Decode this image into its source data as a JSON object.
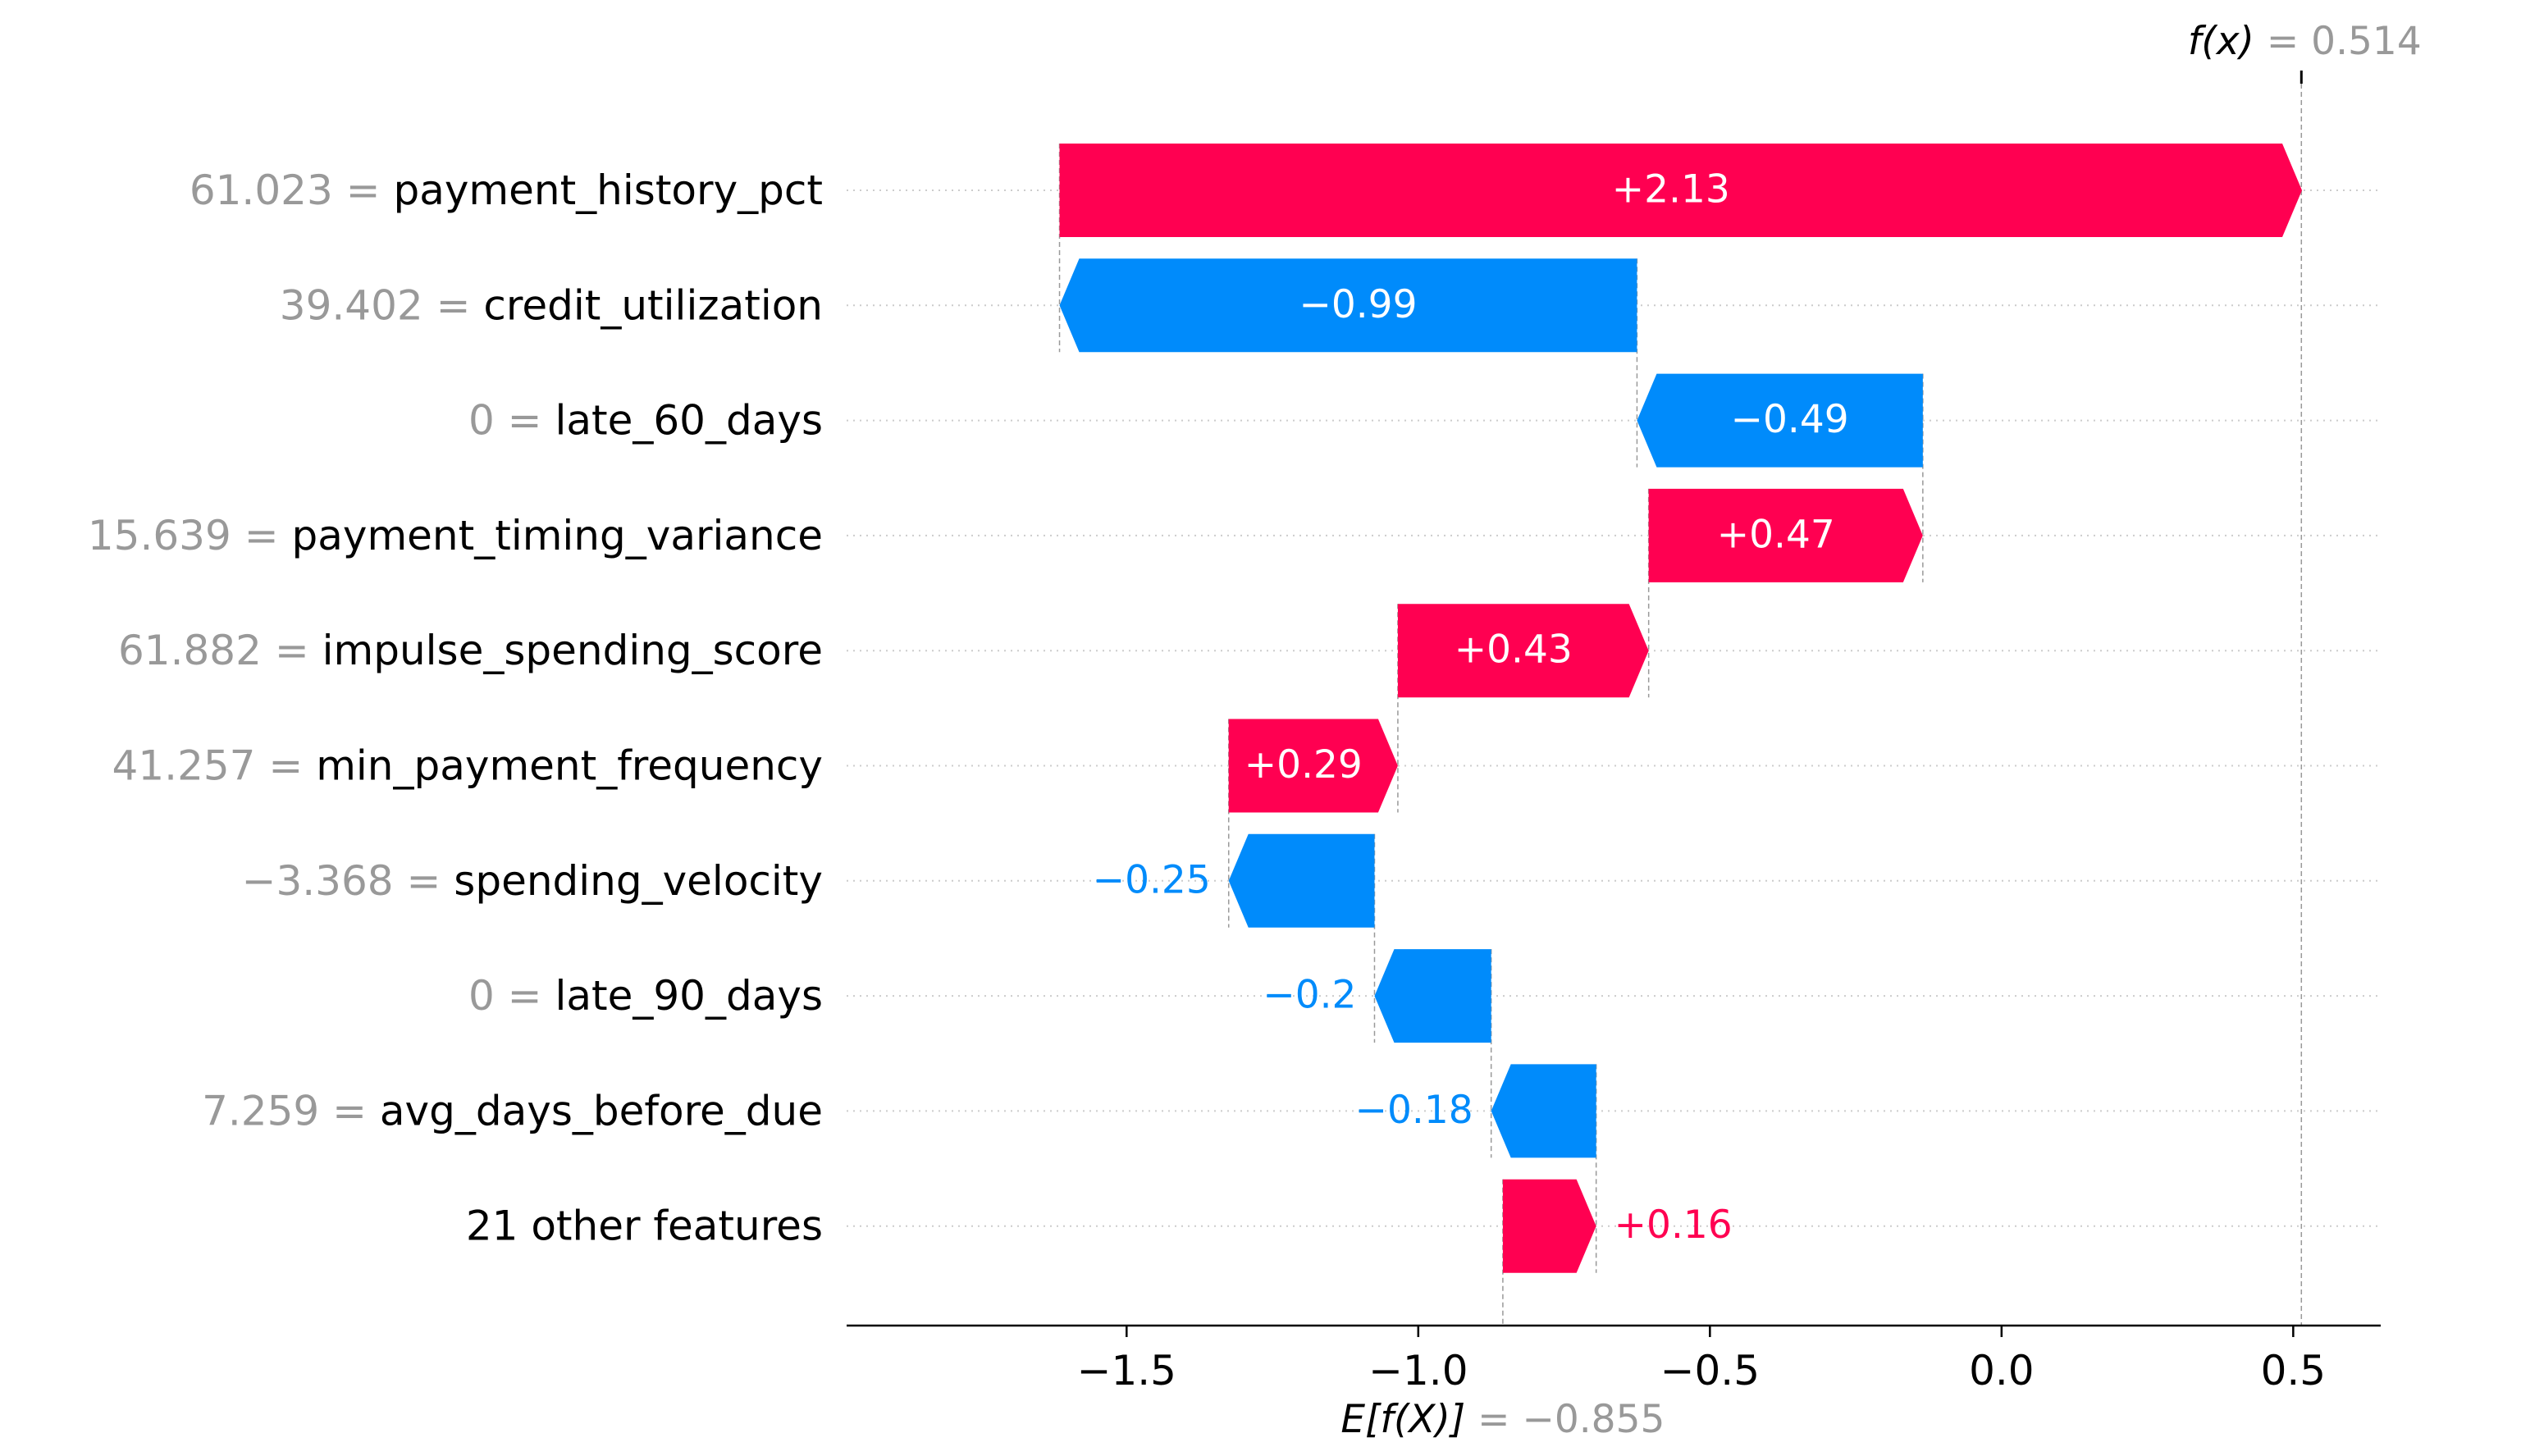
{
  "chart_data": {
    "type": "waterfall",
    "colors": {
      "positive": "#ff0051",
      "negative": "#008bfb",
      "muted": "#999999",
      "text": "#000000",
      "grid": "#cccccc"
    },
    "features": [
      {
        "value": "61.023",
        "name": "payment_history_pct",
        "shap": 2.13,
        "label": "+2.13"
      },
      {
        "value": "39.402",
        "name": "credit_utilization",
        "shap": -0.99,
        "label": "−0.99"
      },
      {
        "value": "0",
        "name": "late_60_days",
        "shap": -0.49,
        "label": "−0.49"
      },
      {
        "value": "15.639",
        "name": "payment_timing_variance",
        "shap": 0.47,
        "label": "+0.47"
      },
      {
        "value": "61.882",
        "name": "impulse_spending_score",
        "shap": 0.43,
        "label": "+0.43"
      },
      {
        "value": "41.257",
        "name": "min_payment_frequency",
        "shap": 0.29,
        "label": "+0.29"
      },
      {
        "value": "−3.368",
        "name": "spending_velocity",
        "shap": -0.25,
        "label": "−0.25"
      },
      {
        "value": "0",
        "name": "late_90_days",
        "shap": -0.2,
        "label": "−0.2"
      },
      {
        "value": "7.259",
        "name": "avg_days_before_due",
        "shap": -0.18,
        "label": "−0.18"
      },
      {
        "value": "",
        "name": "21 other features",
        "shap": 0.16,
        "label": "+0.16"
      }
    ],
    "base_value": -0.855,
    "output_value": 0.514,
    "base_label_name": "E[f(X)]",
    "base_label_value": "−0.855",
    "output_label_name": "f(x)",
    "output_label_value": "0.514",
    "xlim": [
      -1.98,
      0.65
    ],
    "xticks": [
      {
        "v": -1.5,
        "label": "−1.5"
      },
      {
        "v": -1.0,
        "label": "−1.0"
      },
      {
        "v": -0.5,
        "label": "−0.5"
      },
      {
        "v": 0.0,
        "label": "0.0"
      },
      {
        "v": 0.5,
        "label": "0.5"
      }
    ]
  }
}
